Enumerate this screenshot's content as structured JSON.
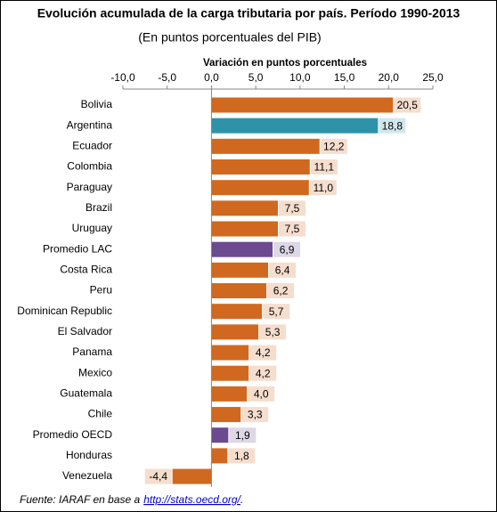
{
  "chart_data": {
    "type": "hbar",
    "title": "Evolución acumulada de la carga tributaria por país. Período 1990-2013",
    "subtitle": "(En puntos porcentuales del PIB)",
    "x_label": "Variación en puntos porcentuales",
    "categories": [
      "Bolivia",
      "Argentina",
      "Ecuador",
      "Colombia",
      "Paraguay",
      "Brazil",
      "Uruguay",
      "Promedio LAC",
      "Costa Rica",
      "Peru",
      "Dominican Republic",
      "El Salvador",
      "Panama",
      "Mexico",
      "Guatemala",
      "Chile",
      "Promedio OECD",
      "Honduras",
      "Venezuela"
    ],
    "values": [
      20.5,
      18.8,
      12.2,
      11.1,
      11.0,
      7.5,
      7.5,
      6.9,
      6.4,
      6.2,
      5.7,
      5.3,
      4.2,
      4.2,
      4.0,
      3.3,
      1.9,
      1.8,
      -4.4
    ],
    "value_labels": [
      "20,5",
      "18,8",
      "12,2",
      "11,1",
      "11,0",
      "7,5",
      "7,5",
      "6,9",
      "6,4",
      "6,2",
      "5,7",
      "5,3",
      "4,2",
      "4,2",
      "4,0",
      "3,3",
      "1,9",
      "1,8",
      "-4,4"
    ],
    "colors": [
      "#d0691f",
      "#2e92a8",
      "#d0691f",
      "#d0691f",
      "#d0691f",
      "#d0691f",
      "#d0691f",
      "#6b4a8e",
      "#d0691f",
      "#d0691f",
      "#d0691f",
      "#d0691f",
      "#d0691f",
      "#d0691f",
      "#d0691f",
      "#d0691f",
      "#6b4a8e",
      "#d0691f",
      "#d0691f"
    ],
    "xlim": [
      -10,
      25
    ],
    "xticks": [
      {
        "value": -10,
        "label": "-10,0"
      },
      {
        "value": -5,
        "label": "-5,0"
      },
      {
        "value": 0,
        "label": "0,0"
      },
      {
        "value": 5,
        "label": "5,0"
      },
      {
        "value": 10,
        "label": "10,0"
      },
      {
        "value": 15,
        "label": "15,0"
      },
      {
        "value": 20,
        "label": "20,0"
      },
      {
        "value": 25,
        "label": "25,0"
      }
    ],
    "source": "Fuente: IARAF en base a",
    "source_link": "http://stats.oecd.org/",
    "source_end": "."
  }
}
